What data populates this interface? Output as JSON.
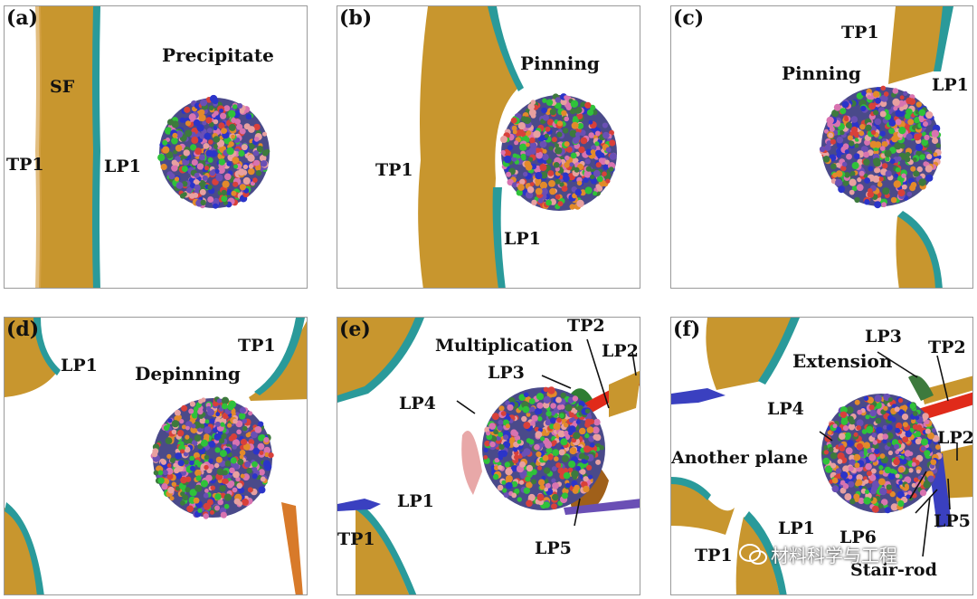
{
  "panels": [
    {
      "letter": "(a)",
      "labels": {
        "sf": "SF",
        "precipitate": "Precipitate",
        "tp1": "TP1",
        "lp1": "LP1"
      }
    },
    {
      "letter": "(b)",
      "labels": {
        "pinning": "Pinning",
        "tp1": "TP1",
        "lp1": "LP1"
      }
    },
    {
      "letter": "(c)",
      "labels": {
        "tp1": "TP1",
        "pinning": "Pinning",
        "lp1": "LP1"
      }
    },
    {
      "letter": "(d)",
      "labels": {
        "lp1": "LP1",
        "tp1": "TP1",
        "depinning": "Depinning"
      }
    },
    {
      "letter": "(e)",
      "labels": {
        "tp2": "TP2",
        "multiplication": "Multiplication",
        "lp2": "LP2",
        "lp3": "LP3",
        "lp4": "LP4",
        "lp1": "LP1",
        "tp1": "TP1",
        "lp5": "LP5"
      }
    },
    {
      "letter": "(f)",
      "labels": {
        "lp3": "LP3",
        "extension": "Extension",
        "tp2": "TP2",
        "lp4": "LP4",
        "lp2": "LP2",
        "another_plane": "Another plane",
        "lp1": "LP1",
        "lp5": "LP5",
        "lp6": "LP6",
        "tp1": "TP1",
        "stair_rod": "Stair-rod"
      }
    }
  ],
  "watermark": "材料科学与工程",
  "colors": {
    "stacking_fault": "#c8962e",
    "partial_edge": "#2a9a9a",
    "precipitate_atoms": [
      "#2b34c9",
      "#2fc23a",
      "#d8403a",
      "#e28a2a",
      "#d873b0",
      "#3d7a3d",
      "#6a4fb5",
      "#e8a0a0"
    ],
    "stair_rod": "#e02a1a",
    "frame": "#9a9a9a"
  }
}
